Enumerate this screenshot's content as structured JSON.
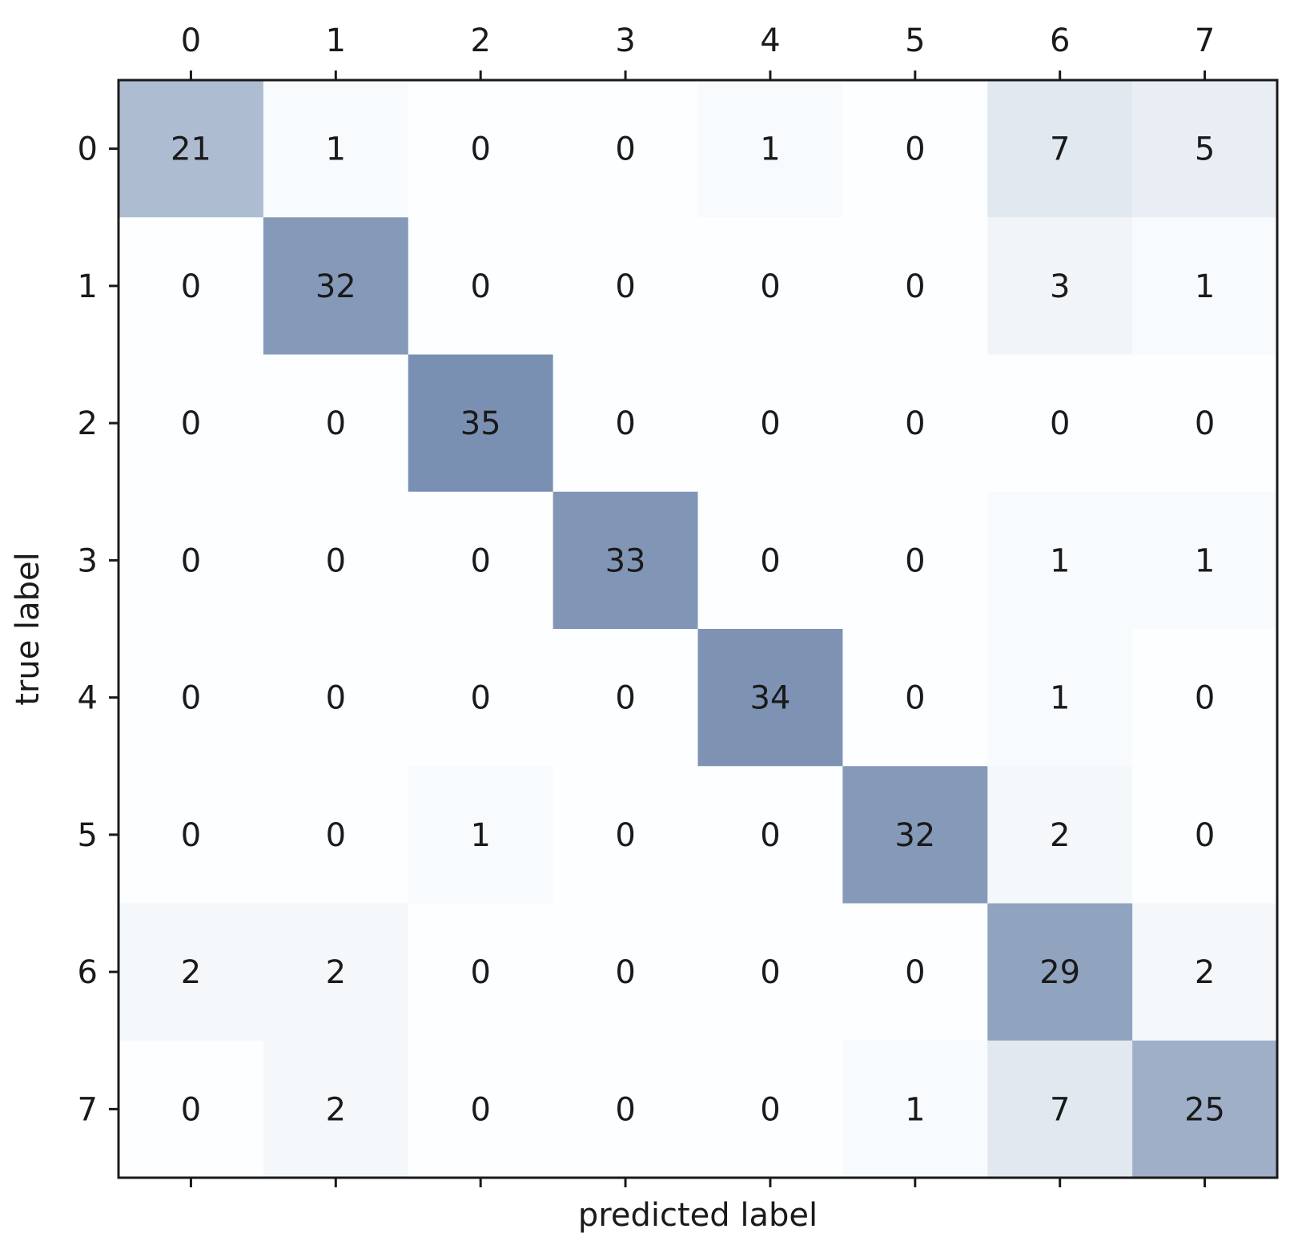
{
  "chart_data": {
    "type": "heatmap",
    "title": "",
    "xlabel": "predicted label",
    "ylabel": "true label",
    "x_categories": [
      "0",
      "1",
      "2",
      "3",
      "4",
      "5",
      "6",
      "7"
    ],
    "y_categories": [
      "0",
      "1",
      "2",
      "3",
      "4",
      "5",
      "6",
      "7"
    ],
    "x_ticks_position": "top",
    "grid": false,
    "colormap": "Blues",
    "values": [
      [
        21,
        1,
        0,
        0,
        1,
        0,
        7,
        5
      ],
      [
        0,
        32,
        0,
        0,
        0,
        0,
        3,
        1
      ],
      [
        0,
        0,
        35,
        0,
        0,
        0,
        0,
        0
      ],
      [
        0,
        0,
        0,
        33,
        0,
        0,
        1,
        1
      ],
      [
        0,
        0,
        0,
        0,
        34,
        0,
        1,
        0
      ],
      [
        0,
        0,
        1,
        0,
        0,
        32,
        2,
        0
      ],
      [
        2,
        2,
        0,
        0,
        0,
        0,
        29,
        2
      ],
      [
        0,
        2,
        0,
        0,
        0,
        1,
        7,
        25
      ]
    ]
  }
}
